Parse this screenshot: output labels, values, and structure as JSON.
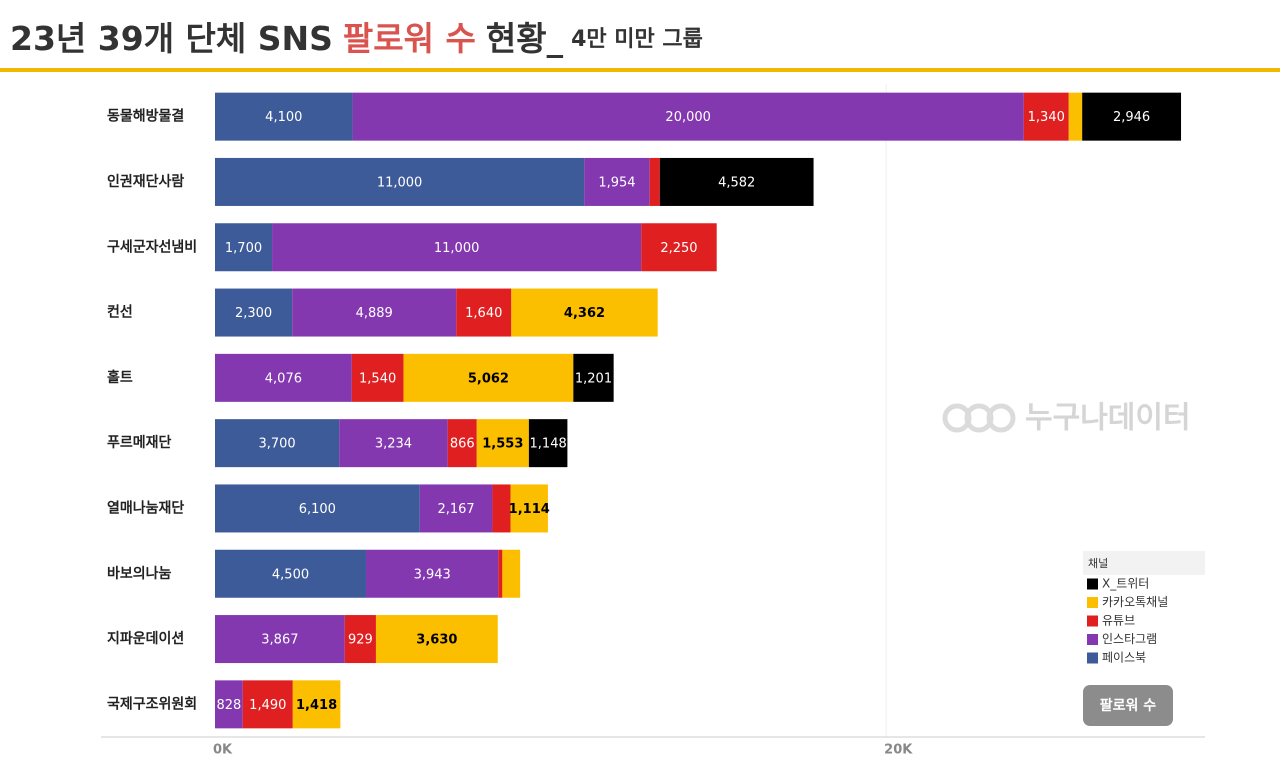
{
  "chart_data": {
    "type": "stacked_barh",
    "title": "23년 39개 단체 SNS",
    "title_highlight": "팔로워 수",
    "title_end": "현황_",
    "subtitle": "4만 미만 그룹",
    "categories": [
      "동물해방물결",
      "인권재단사람",
      "구세군자선냄비",
      "컨선",
      "홀트",
      "푸르메재단",
      "열매나눔재단",
      "바보의나눔",
      "지파운데이션",
      "국제구조위원회"
    ],
    "series": [
      {
        "name": "페이스북",
        "color": "#3d5a99",
        "values": [
          4100,
          11000,
          1700,
          2300,
          null,
          3700,
          6100,
          4500,
          null,
          null
        ],
        "value_labels": [
          "4,100",
          "11,000",
          "1,700",
          "2,300",
          null,
          "3,700",
          "6,100",
          "4,500",
          null,
          null
        ]
      },
      {
        "name": "인스타그램",
        "color": "#8438b0",
        "values": [
          20000,
          1954,
          11000,
          4889,
          4076,
          3234,
          2167,
          3943,
          3867,
          828
        ],
        "value_labels": [
          "20,000",
          "1,954",
          "11,000",
          "4,889",
          "4,076",
          "3,234",
          "2,167",
          "3,943",
          "3,867",
          "828"
        ]
      },
      {
        "name": "유튜브",
        "color": "#e02020",
        "values": [
          1340,
          300,
          2250,
          1640,
          1540,
          866,
          540,
          120,
          929,
          1490
        ],
        "value_labels": [
          "1,340",
          null,
          "2,250",
          "1,640",
          "1,540",
          "866",
          null,
          null,
          "929",
          "1,490"
        ]
      },
      {
        "name": "카카오톡채널",
        "color": "#fbbf00",
        "values": [
          400,
          null,
          null,
          4362,
          5062,
          1553,
          1114,
          530,
          3630,
          1418
        ],
        "value_labels": [
          null,
          null,
          null,
          "4,362",
          "5,062",
          "1,553",
          "1,114",
          null,
          "3,630",
          "1,418"
        ]
      },
      {
        "name": "X_트위터",
        "color": "#000000",
        "values": [
          2946,
          4582,
          null,
          null,
          1201,
          1148,
          null,
          null,
          null,
          null
        ],
        "value_labels": [
          "2,946",
          "4,582",
          null,
          null,
          "1,201",
          "1,148",
          null,
          null,
          null,
          null
        ]
      }
    ],
    "xlim": [
      0,
      29500
    ],
    "xticks": [
      {
        "value": 0,
        "label": "0K"
      },
      {
        "value": 20000,
        "label": "20K"
      }
    ],
    "grid": true,
    "legend_title": "채널",
    "legend_position": "lower right",
    "watermark": "누구나데이터",
    "button": "팔로워 수"
  }
}
